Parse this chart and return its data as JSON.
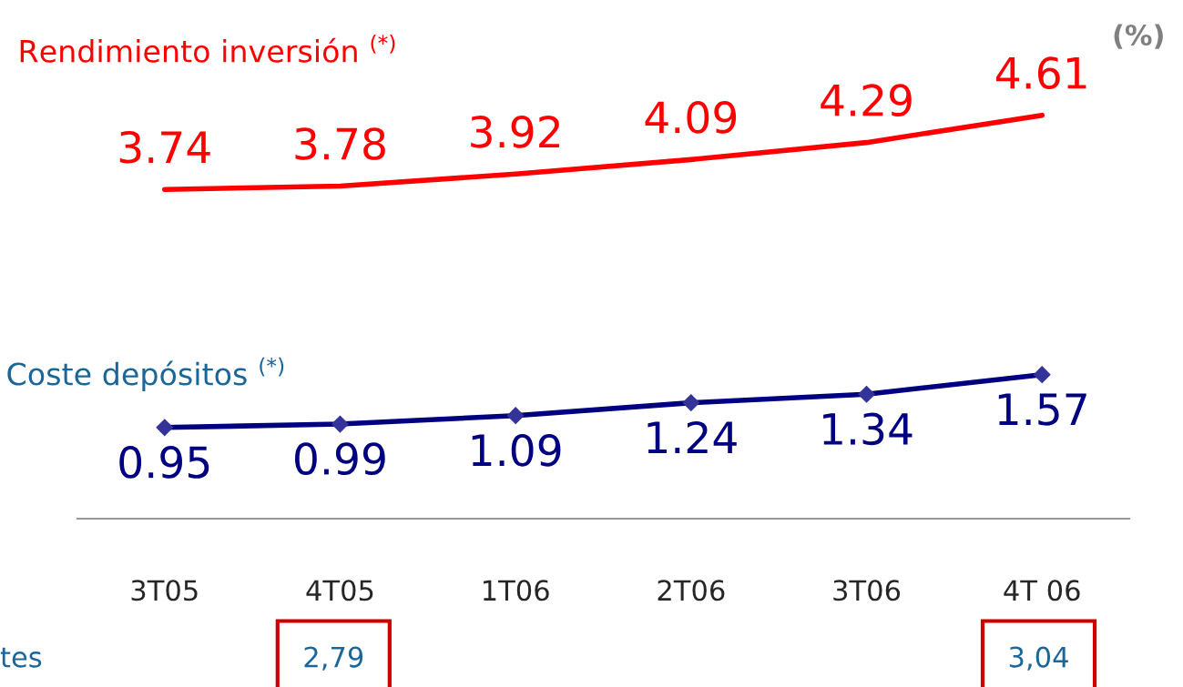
{
  "chart_data": {
    "type": "line",
    "categories": [
      "3T05",
      "4T05",
      "1T06",
      "2T06",
      "3T06",
      "4T 06"
    ],
    "series": [
      {
        "name": "Rendimiento inversión $^{(*)}$",
        "color": "#ff0000",
        "values": [
          3.74,
          3.78,
          3.92,
          4.09,
          4.29,
          4.61
        ],
        "marker": "none"
      },
      {
        "name": "Coste depósitos $^{(*)}$",
        "color": "#000080",
        "values": [
          0.95,
          0.99,
          1.09,
          1.24,
          1.34,
          1.57
        ],
        "marker": "diamond"
      }
    ],
    "data_labels": true,
    "grid": false,
    "legend": false,
    "annotations": [
      "(%)",
      "tes",
      "2,79",
      "3,04"
    ]
  }
}
